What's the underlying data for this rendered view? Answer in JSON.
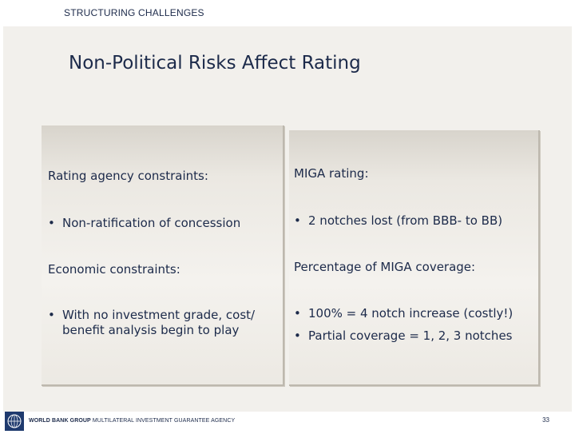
{
  "header": {
    "section_label": "STRUCTURING CHALLENGES"
  },
  "slide": {
    "title": "Non-Political Risks Affect Rating"
  },
  "left_panel": {
    "heading_1": "Rating agency constraints:",
    "bullet_1": "Non-ratification of concession",
    "heading_2": "Economic constraints:",
    "bullet_2_line_1": "With no investment grade, cost/",
    "bullet_2_line_2": "benefit analysis begin to play"
  },
  "right_panel": {
    "heading_1": "MIGA rating:",
    "bullet_1": "2 notches lost (from BBB- to BB)",
    "heading_2": "Percentage of MIGA coverage:",
    "bullet_2": "100% = 4 notch increase (costly!)",
    "bullet_3": "Partial coverage = 1, 2, 3 notches"
  },
  "bullet_glyph": "•",
  "footer": {
    "org_bold": "WORLD BANK GROUP",
    "org_rest": " MULTILATERAL INVESTMENT GUARANTEE AGENCY",
    "page_number": "33"
  },
  "colors": {
    "text": "#1c2a4a",
    "panel_bg": "#f2f0ec",
    "logo": "#1f3a6e"
  }
}
